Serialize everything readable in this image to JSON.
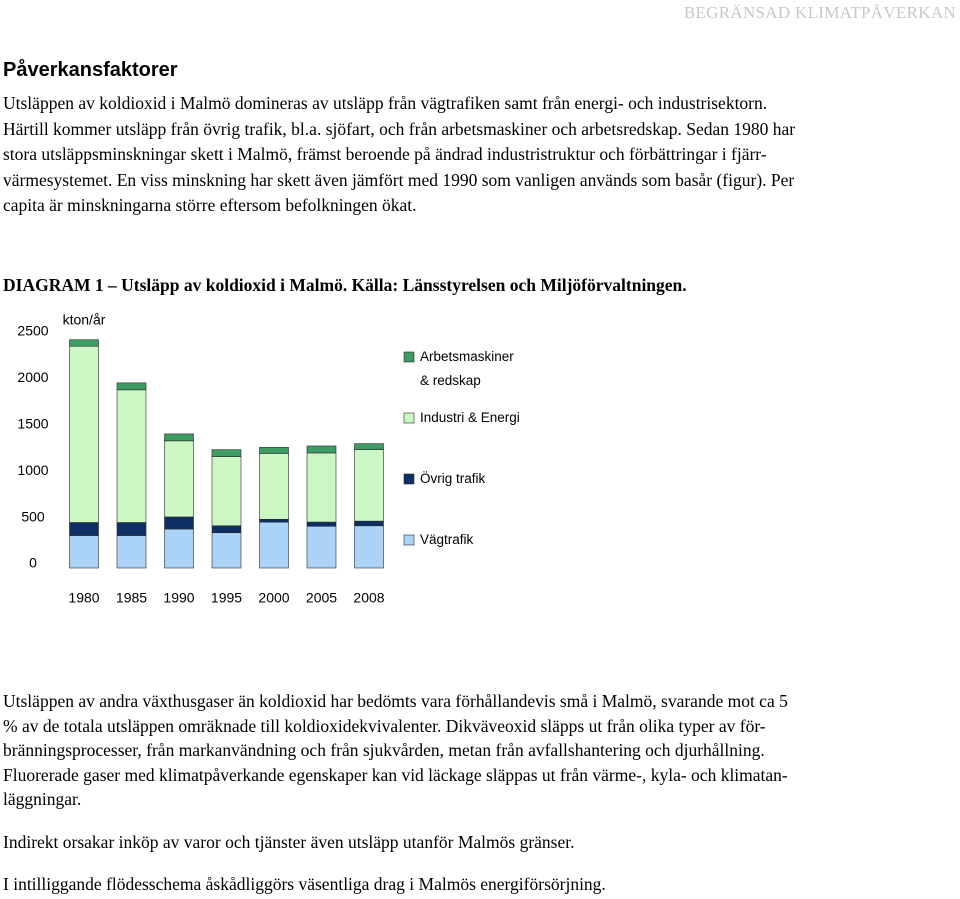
{
  "header": "BEGRÄNSAD KLIMATPÅVERKAN",
  "heading": "Påverkansfaktorer",
  "paragraphs": [
    [
      "Utsläppen av koldioxid i Malmö domineras av utsläpp från vägtrafiken samt från energi- och industrisektorn.",
      "Härtill kommer utsläpp från övrig trafik, bl.a. sjöfart, och från arbetsmaskiner och arbetsredskap. Sedan 1980 har",
      "stora utsläppsminskningar skett i Malmö, främst beroende på ändrad industristruktur och förbättringar i fjärr-",
      "värmesystemet. En viss minskning har skett även jämfört med 1990 som vanligen används som basår (figur). Per",
      "capita är minskningarna större eftersom befolkningen ökat."
    ],
    [
      "Utsläppen av andra växthusgaser än koldioxid har bedömts vara förhållandevis små i Malmö, svarande mot ca 5",
      "% av de totala utsläppen omräknade till koldioxidekvivalenter. Dikväveoxid släpps ut från olika typer av för-",
      "bränningsprocesser, från markanvändning och från sjukvården, metan från avfallshantering och djurhållning.",
      "Fluorerade gaser med klimatpåverkande egenskaper kan vid läckage släppas ut från värme-, kyla- och klimatan-",
      "läggningar."
    ],
    [
      "Indirekt orsakar inköp av varor och tjänster även utsläpp utanför Malmös gränser."
    ],
    [
      "I intilliggande flödesschema åskådliggörs väsentliga drag i Malmös energiförsörjning."
    ]
  ],
  "figure_caption": "DIAGRAM 1 – Utsläpp av koldioxid i Malmö. Källa: Länsstyrelsen och Miljöförvaltningen.",
  "chart_data": {
    "type": "bar",
    "stacked": true,
    "y_label": "kton/år",
    "categories": [
      "1980",
      "1985",
      "1990",
      "1995",
      "2000",
      "2005",
      "2008"
    ],
    "series": [
      {
        "name": "Arbetsmaskiner & redskap",
        "color": "#3d9b64",
        "values": [
          70,
          75,
          75,
          75,
          65,
          75,
          65
        ]
      },
      {
        "name": "Industri & Energi",
        "color": "#ccf7c4",
        "values": [
          1900,
          1430,
          820,
          745,
          710,
          745,
          770
        ]
      },
      {
        "name": "Övrig trafik",
        "color": "#0e2f63",
        "values": [
          140,
          140,
          130,
          75,
          30,
          45,
          50
        ]
      },
      {
        "name": "Vägtrafik",
        "color": "#aad3f7",
        "values": [
          350,
          350,
          420,
          380,
          495,
          450,
          455
        ]
      }
    ],
    "ylim": [
      0,
      2500
    ],
    "yticks": [
      0,
      500,
      1000,
      1500,
      2000,
      2500
    ]
  }
}
